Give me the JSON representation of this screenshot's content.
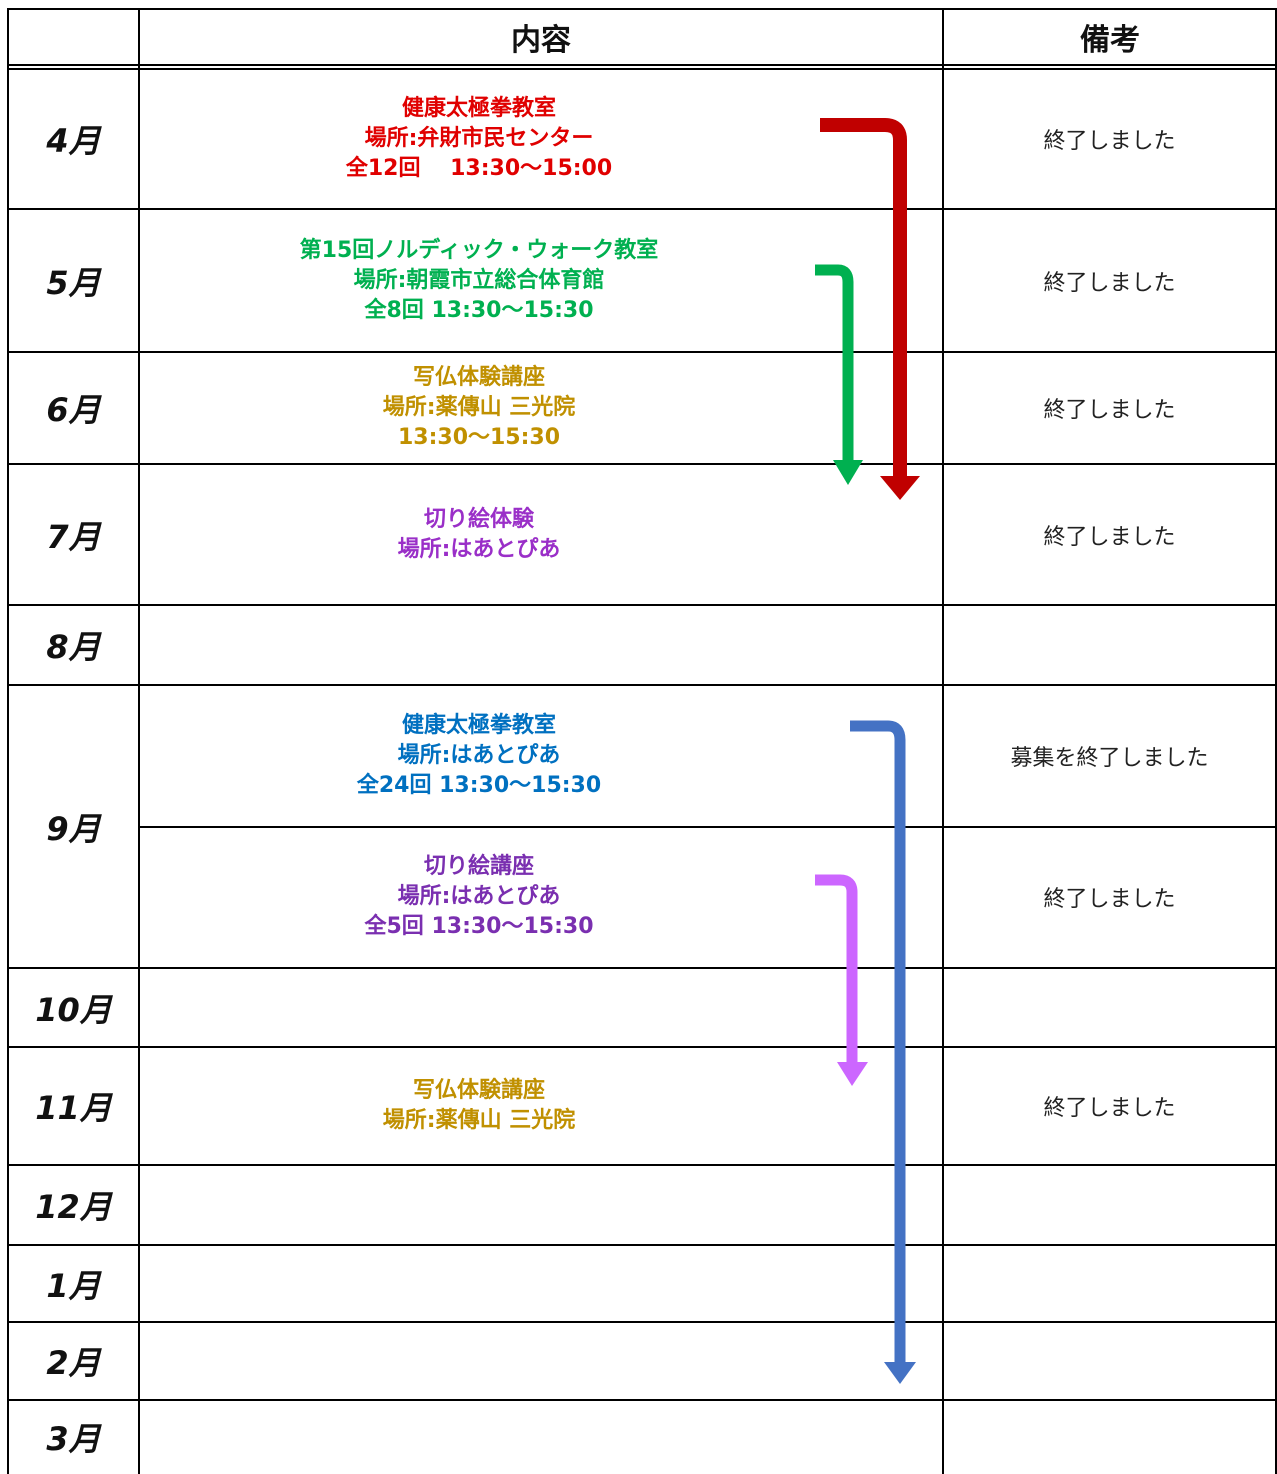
{
  "header": {
    "content": "内容",
    "notes": "備考"
  },
  "rows": [
    {
      "month": "4月",
      "events": [
        {
          "color": "#e00000",
          "lines": [
            "健康太極拳教室",
            "場所:弁財市民センター",
            "全12回　 13:30～15:00"
          ],
          "note": "終了しました"
        }
      ]
    },
    {
      "month": "5月",
      "events": [
        {
          "color": "#00b050",
          "lines": [
            "第15回ノルディック・ウォーク教室",
            "場所:朝霞市立総合体育館",
            "全8回  13:30～15:30"
          ],
          "note": "終了しました"
        }
      ]
    },
    {
      "month": "6月",
      "events": [
        {
          "color": "#c09000",
          "lines": [
            "写仏体験講座",
            "場所:薬傳山  三光院",
            "13:30～15:30"
          ],
          "note": "終了しました"
        }
      ]
    },
    {
      "month": "7月",
      "events": [
        {
          "color": "#9a2fc8",
          "lines": [
            "切り絵体験",
            "場所:はあとぴあ"
          ],
          "note": "終了しました"
        }
      ]
    },
    {
      "month": "8月",
      "events": []
    },
    {
      "month": "9月",
      "events": [
        {
          "color": "#0070c0",
          "lines": [
            "健康太極拳教室",
            "場所:はあとぴあ",
            "全24回  13:30～15:30"
          ],
          "note": "募集を終了しました"
        },
        {
          "color": "#7a2fb0",
          "lines": [
            "切り絵講座",
            "場所:はあとぴあ",
            "全5回  13:30～15:30"
          ],
          "note": "終了しました"
        }
      ]
    },
    {
      "month": "10月",
      "events": []
    },
    {
      "month": "11月",
      "events": [
        {
          "color": "#c09000",
          "lines": [
            "写仏体験講座",
            "場所:薬傳山  三光院"
          ],
          "note": "終了しました"
        }
      ]
    },
    {
      "month": "12月",
      "events": []
    },
    {
      "month": "1月",
      "events": []
    },
    {
      "month": "2月",
      "events": []
    },
    {
      "month": "3月",
      "events": []
    }
  ]
}
